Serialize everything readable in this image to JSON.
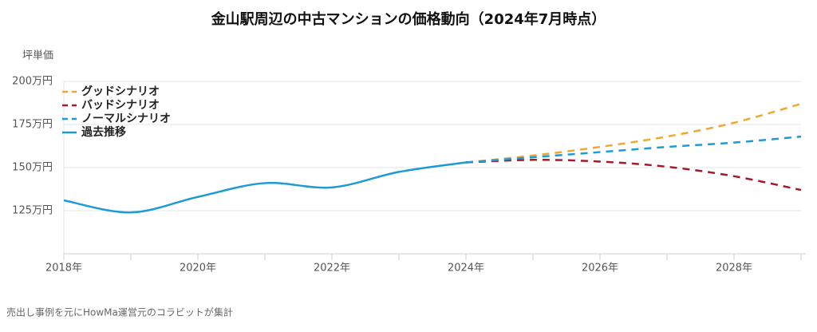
{
  "chart_data": {
    "type": "line",
    "title": "金山駅周辺の中古マンションの価格動向（2024年7月時点）",
    "ylabel": "坪単価",
    "footnote": "売出し事例を元にHowMa運営元のコラビットが集計",
    "x": [
      2018,
      2019,
      2020,
      2021,
      2022,
      2023,
      2024,
      2025,
      2026,
      2027,
      2028,
      2029
    ],
    "xlim": [
      2018,
      2029
    ],
    "xticks": [
      {
        "value": 2018,
        "label": "2018年"
      },
      {
        "value": 2020,
        "label": "2020年"
      },
      {
        "value": 2022,
        "label": "2022年"
      },
      {
        "value": 2024,
        "label": "2024年"
      },
      {
        "value": 2026,
        "label": "2026年"
      },
      {
        "value": 2028,
        "label": "2028年"
      }
    ],
    "xminorticks": [
      2019,
      2021,
      2023,
      2025,
      2027,
      2029
    ],
    "ylim": [
      100,
      200
    ],
    "yticks": [
      {
        "value": 125,
        "label": "125万円"
      },
      {
        "value": 150,
        "label": "150万円"
      },
      {
        "value": 175,
        "label": "175万円"
      },
      {
        "value": 200,
        "label": "200万円"
      }
    ],
    "grid": true,
    "legend": "upper left",
    "series": [
      {
        "name": "グッドシナリオ",
        "color": "#f0a832",
        "dashed": true,
        "values": [
          null,
          null,
          null,
          null,
          null,
          null,
          153,
          157,
          162,
          168,
          176,
          187
        ]
      },
      {
        "name": "バッドシナリオ",
        "color": "#a31b2b",
        "dashed": true,
        "values": [
          null,
          null,
          null,
          null,
          null,
          null,
          153,
          154.5,
          153.5,
          150.5,
          145,
          137
        ]
      },
      {
        "name": "ノーマルシナリオ",
        "color": "#1e9ad6",
        "dashed": true,
        "values": [
          null,
          null,
          null,
          null,
          null,
          null,
          153,
          156,
          159,
          162,
          164.5,
          168
        ]
      },
      {
        "name": "過去推移",
        "color": "#1e9ad6",
        "dashed": false,
        "values": [
          131,
          124,
          133,
          141,
          138.5,
          147.5,
          153,
          null,
          null,
          null,
          null,
          null
        ]
      }
    ]
  }
}
